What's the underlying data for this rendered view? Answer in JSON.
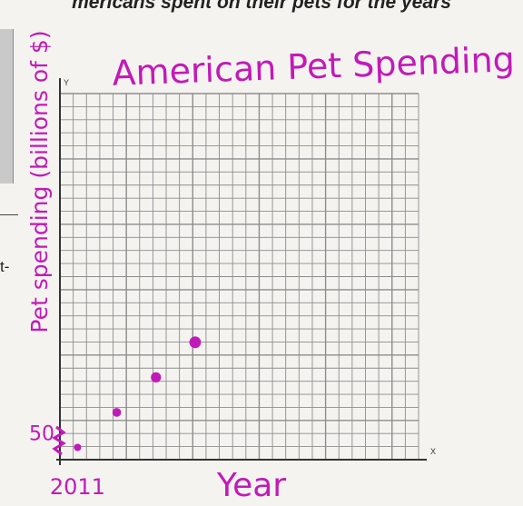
{
  "page": {
    "header_text": "mericans spent on their pets for the years",
    "side_fragment": "t-"
  },
  "colors": {
    "ink": "#c21ab8",
    "grid": "#8d8d8d",
    "axis": "#333333",
    "paper": "#f4f3f0"
  },
  "chart_data": {
    "type": "scatter",
    "title": "American Pet Spending",
    "xlabel": "Year",
    "ylabel": "Pet spending (billions of $)",
    "x_axis_letter": "X",
    "y_axis_letter": "Y",
    "x_tick_labels": [
      {
        "x": 2011,
        "label": "2011"
      }
    ],
    "y_tick_labels": [
      {
        "y": 50,
        "label": "50"
      }
    ],
    "xlim": [
      2010.55,
      2019.7
    ],
    "ylim": [
      49.3,
      70.2
    ],
    "grid": true,
    "points": [
      {
        "x": 2011,
        "y": 50.0
      },
      {
        "x": 2012,
        "y": 52.0
      },
      {
        "x": 2013,
        "y": 54.0
      },
      {
        "x": 2014,
        "y": 56.0
      }
    ]
  }
}
